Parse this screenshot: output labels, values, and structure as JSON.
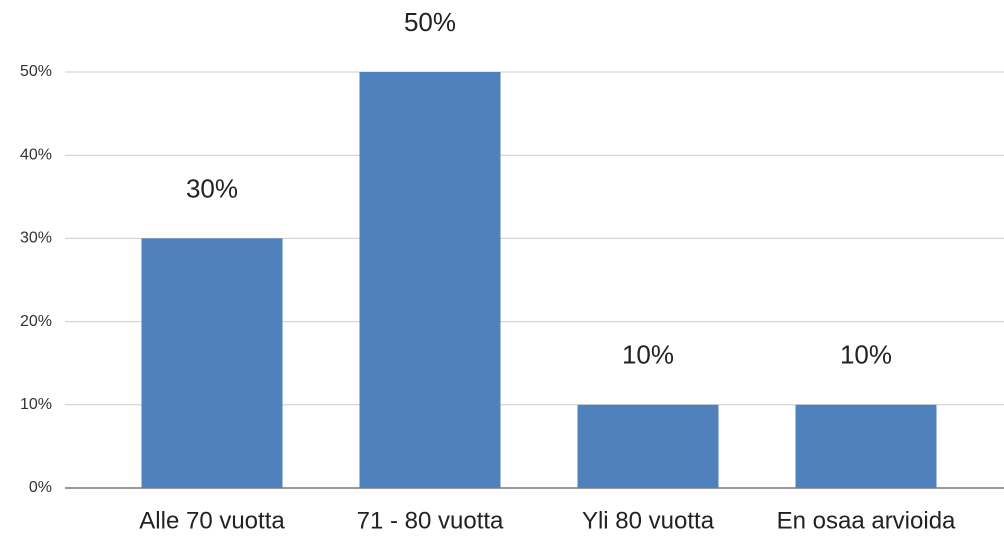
{
  "chart_data": {
    "type": "bar",
    "categories": [
      "Alle 70 vuotta",
      "71 - 80 vuotta",
      "Yli 80 vuotta",
      "En osaa arvioida"
    ],
    "values": [
      30,
      50,
      10,
      10
    ],
    "value_labels": [
      "30%",
      "50%",
      "10%",
      "10%"
    ],
    "color": "#4f81bd",
    "ylim": [
      0,
      50
    ],
    "yticks": [
      {
        "value": 0,
        "label": "0%"
      },
      {
        "value": 10,
        "label": "10%"
      },
      {
        "value": 20,
        "label": "20%"
      },
      {
        "value": 30,
        "label": "30%"
      },
      {
        "value": 40,
        "label": "40%"
      },
      {
        "value": 50,
        "label": "50%"
      }
    ],
    "grid": true
  }
}
